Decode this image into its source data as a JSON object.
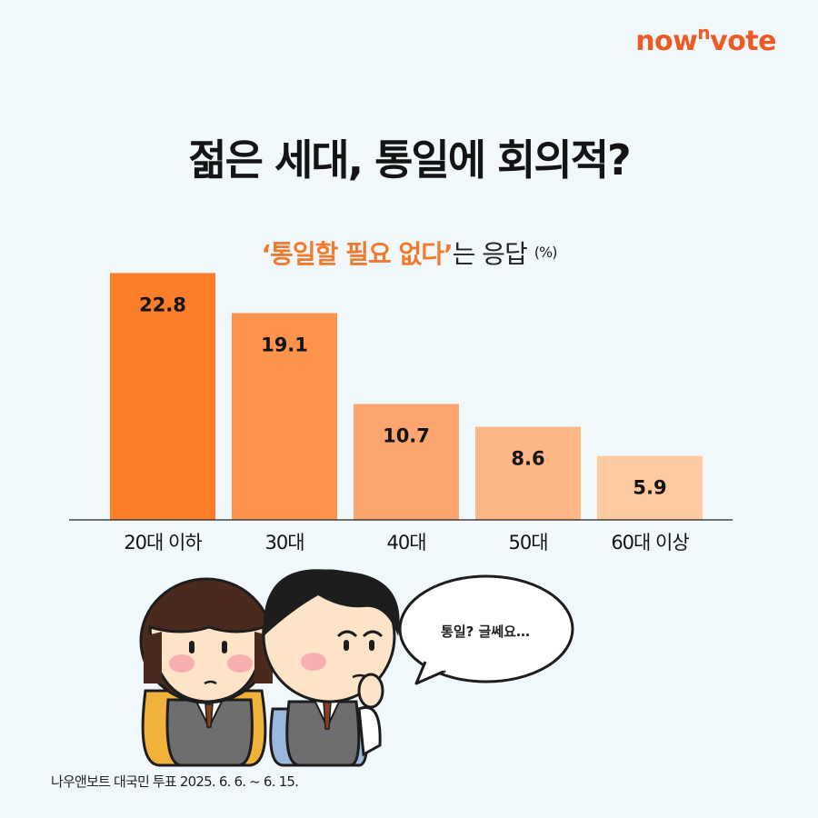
{
  "brand": {
    "logo_main": "now",
    "logo_sup": "n",
    "logo_end": "vote",
    "color": "#ef5a24"
  },
  "header": {
    "title": "젊은 세대, 통일에 회의적?"
  },
  "subtitle": {
    "highlight": "‘통일할 필요 없다’",
    "rest": "는 응답",
    "unit": "(%)"
  },
  "chart_data": {
    "type": "bar",
    "title": "젊은 세대, 통일에 회의적?",
    "subtitle": "‘통일할 필요 없다’는 응답 (%)",
    "categories": [
      "20대 이하",
      "30대",
      "40대",
      "50대",
      "60대 이상"
    ],
    "values": [
      22.8,
      19.1,
      10.7,
      8.6,
      5.9
    ],
    "ylim": [
      0,
      23
    ],
    "grid": false,
    "bar_colors": [
      "#fb7f2b",
      "#fc934d",
      "#fca56e",
      "#fdb685",
      "#fec99f"
    ]
  },
  "illustration": {
    "speech": "통일? 글쎄요…"
  },
  "source": "나우앤보트 대국민 투표 2025. 6. 6. ~ 6. 15."
}
